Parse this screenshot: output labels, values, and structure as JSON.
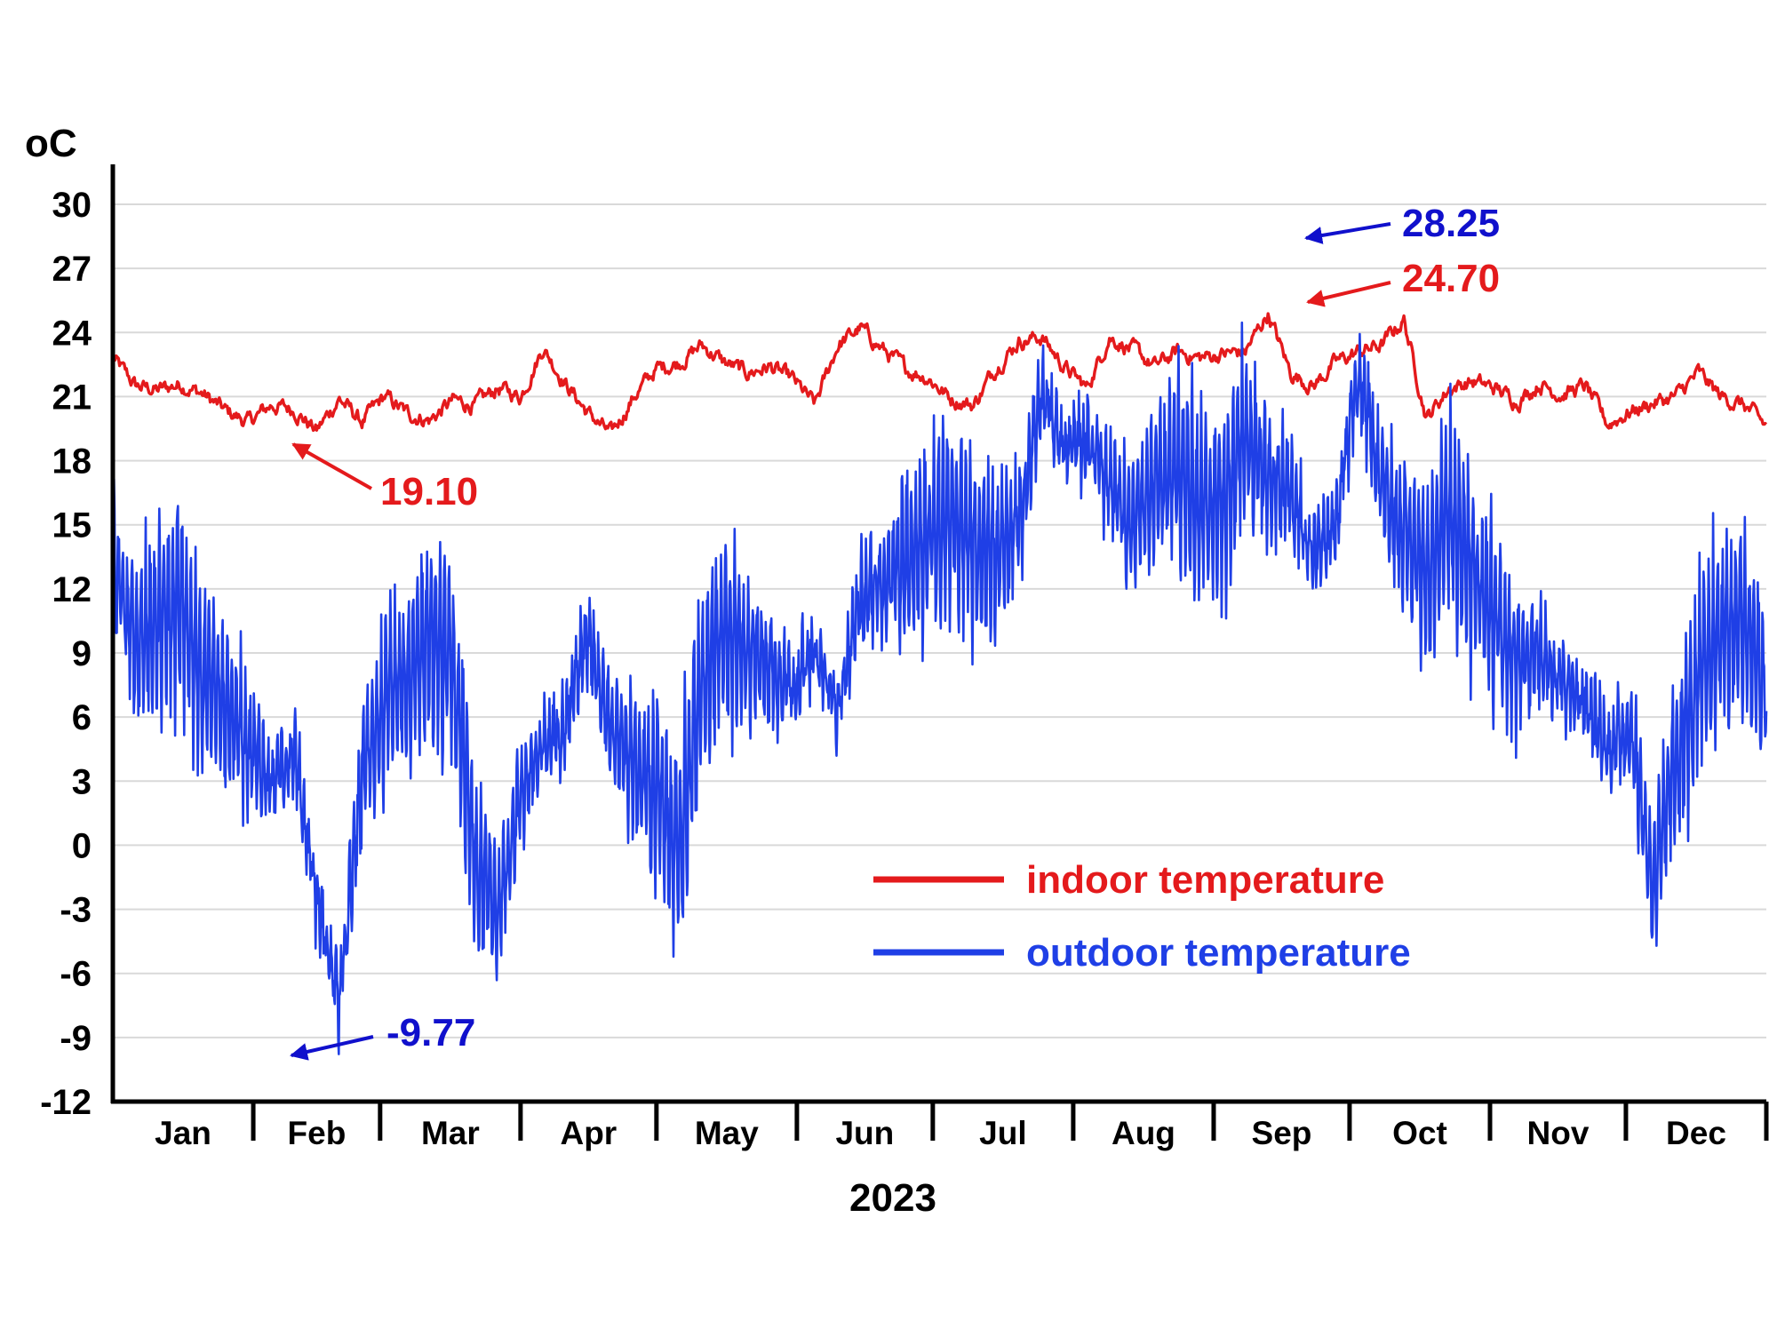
{
  "chart_data": {
    "type": "line",
    "title": "",
    "ylabel": "oC",
    "xlabel": "2023",
    "ylim": [
      -12,
      30
    ],
    "yticks": [
      30,
      27,
      24,
      21,
      18,
      15,
      12,
      9,
      6,
      3,
      0,
      -3,
      -6,
      -9,
      -12
    ],
    "grid": true,
    "legend_position": "lower-center",
    "x_unit": "day of year",
    "xlim": [
      0,
      365
    ],
    "categories": [
      "Jan",
      "Feb",
      "Mar",
      "Apr",
      "May",
      "Jun",
      "Jul",
      "Aug",
      "Sep",
      "Oct",
      "Nov",
      "Dec"
    ],
    "series": [
      {
        "name": "indoor temperature",
        "color": "#e41a1c",
        "x": [
          0,
          5,
          10,
          15,
          20,
          25,
          30,
          35,
          40,
          45,
          50,
          55,
          60,
          65,
          70,
          75,
          80,
          85,
          90,
          95,
          100,
          105,
          110,
          115,
          120,
          125,
          130,
          135,
          140,
          145,
          150,
          155,
          160,
          165,
          170,
          175,
          180,
          185,
          190,
          195,
          200,
          205,
          210,
          215,
          220,
          225,
          230,
          235,
          240,
          245,
          250,
          255,
          260,
          265,
          270,
          275,
          280,
          285,
          290,
          295,
          300,
          305,
          310,
          315,
          320,
          325,
          330,
          335,
          340,
          345,
          350,
          355,
          360,
          365
        ],
        "values": [
          22.8,
          21.5,
          21.3,
          21.6,
          21.1,
          20.3,
          19.8,
          20.6,
          20.4,
          19.4,
          20.9,
          19.8,
          21.0,
          20.2,
          19.9,
          20.8,
          20.6,
          21.4,
          21.0,
          23.3,
          21.6,
          20.2,
          19.2,
          21.0,
          22.3,
          22.6,
          23.4,
          22.6,
          22.1,
          22.4,
          21.8,
          20.6,
          23.4,
          24.2,
          23.2,
          22.3,
          21.9,
          20.9,
          20.6,
          22.4,
          23.6,
          23.8,
          22.4,
          21.4,
          23.8,
          23.2,
          22.4,
          23.1,
          22.8,
          23.0,
          23.1,
          24.9,
          22.1,
          21.5,
          22.6,
          23.1,
          23.4,
          24.6,
          20.0,
          21.4,
          21.7,
          21.4,
          20.8,
          21.6,
          21.1,
          21.5,
          19.7,
          20.3,
          20.7,
          21.0,
          22.1,
          21.0,
          20.6,
          19.6
        ]
      },
      {
        "name": "outdoor temperature",
        "color": "#1f3fe6",
        "x": [
          0,
          5,
          10,
          15,
          20,
          25,
          30,
          35,
          40,
          45,
          50,
          55,
          60,
          65,
          70,
          75,
          80,
          85,
          90,
          95,
          100,
          105,
          110,
          115,
          120,
          125,
          130,
          135,
          140,
          145,
          150,
          155,
          160,
          165,
          170,
          175,
          180,
          185,
          190,
          195,
          200,
          205,
          210,
          215,
          220,
          225,
          230,
          235,
          240,
          245,
          250,
          255,
          260,
          265,
          270,
          275,
          280,
          285,
          290,
          295,
          300,
          305,
          310,
          315,
          320,
          325,
          330,
          335,
          340,
          345,
          350,
          355,
          360,
          365
        ],
        "values": [
          13.2,
          9.5,
          10.5,
          11.4,
          8.0,
          6.5,
          5.0,
          2.8,
          4.5,
          -2.5,
          -7.5,
          3.5,
          6.5,
          7.5,
          9.8,
          8.5,
          -1.0,
          -3.2,
          2.5,
          4.5,
          6.0,
          10.0,
          5.5,
          3.8,
          2.4,
          -0.2,
          7.5,
          10.0,
          9.2,
          8.4,
          7.5,
          9.0,
          6.5,
          11.5,
          12.0,
          13.3,
          14.5,
          15.5,
          14.0,
          13.5,
          15.0,
          21.5,
          18.5,
          19.0,
          17.0,
          15.0,
          17.0,
          17.5,
          16.0,
          15.5,
          19.5,
          17.5,
          16.5,
          13.5,
          15.0,
          22.2,
          17.0,
          14.5,
          13.0,
          15.5,
          13.0,
          10.5,
          8.5,
          9.0,
          8.0,
          6.5,
          4.5,
          5.5,
          -2.0,
          4.0,
          7.5,
          10.0,
          10.5,
          7.0
        ]
      }
    ],
    "annotations": [
      {
        "label": "19.10",
        "series": "indoor temperature",
        "x": 40,
        "value": 19.1
      },
      {
        "label": "24.70",
        "series": "indoor temperature",
        "x": 250,
        "value": 24.7
      },
      {
        "label": "28.25",
        "series": "outdoor temperature",
        "x": 250,
        "value": 28.25
      },
      {
        "label": "-9.77",
        "series": "outdoor temperature",
        "x": 40,
        "value": -9.77
      }
    ]
  }
}
